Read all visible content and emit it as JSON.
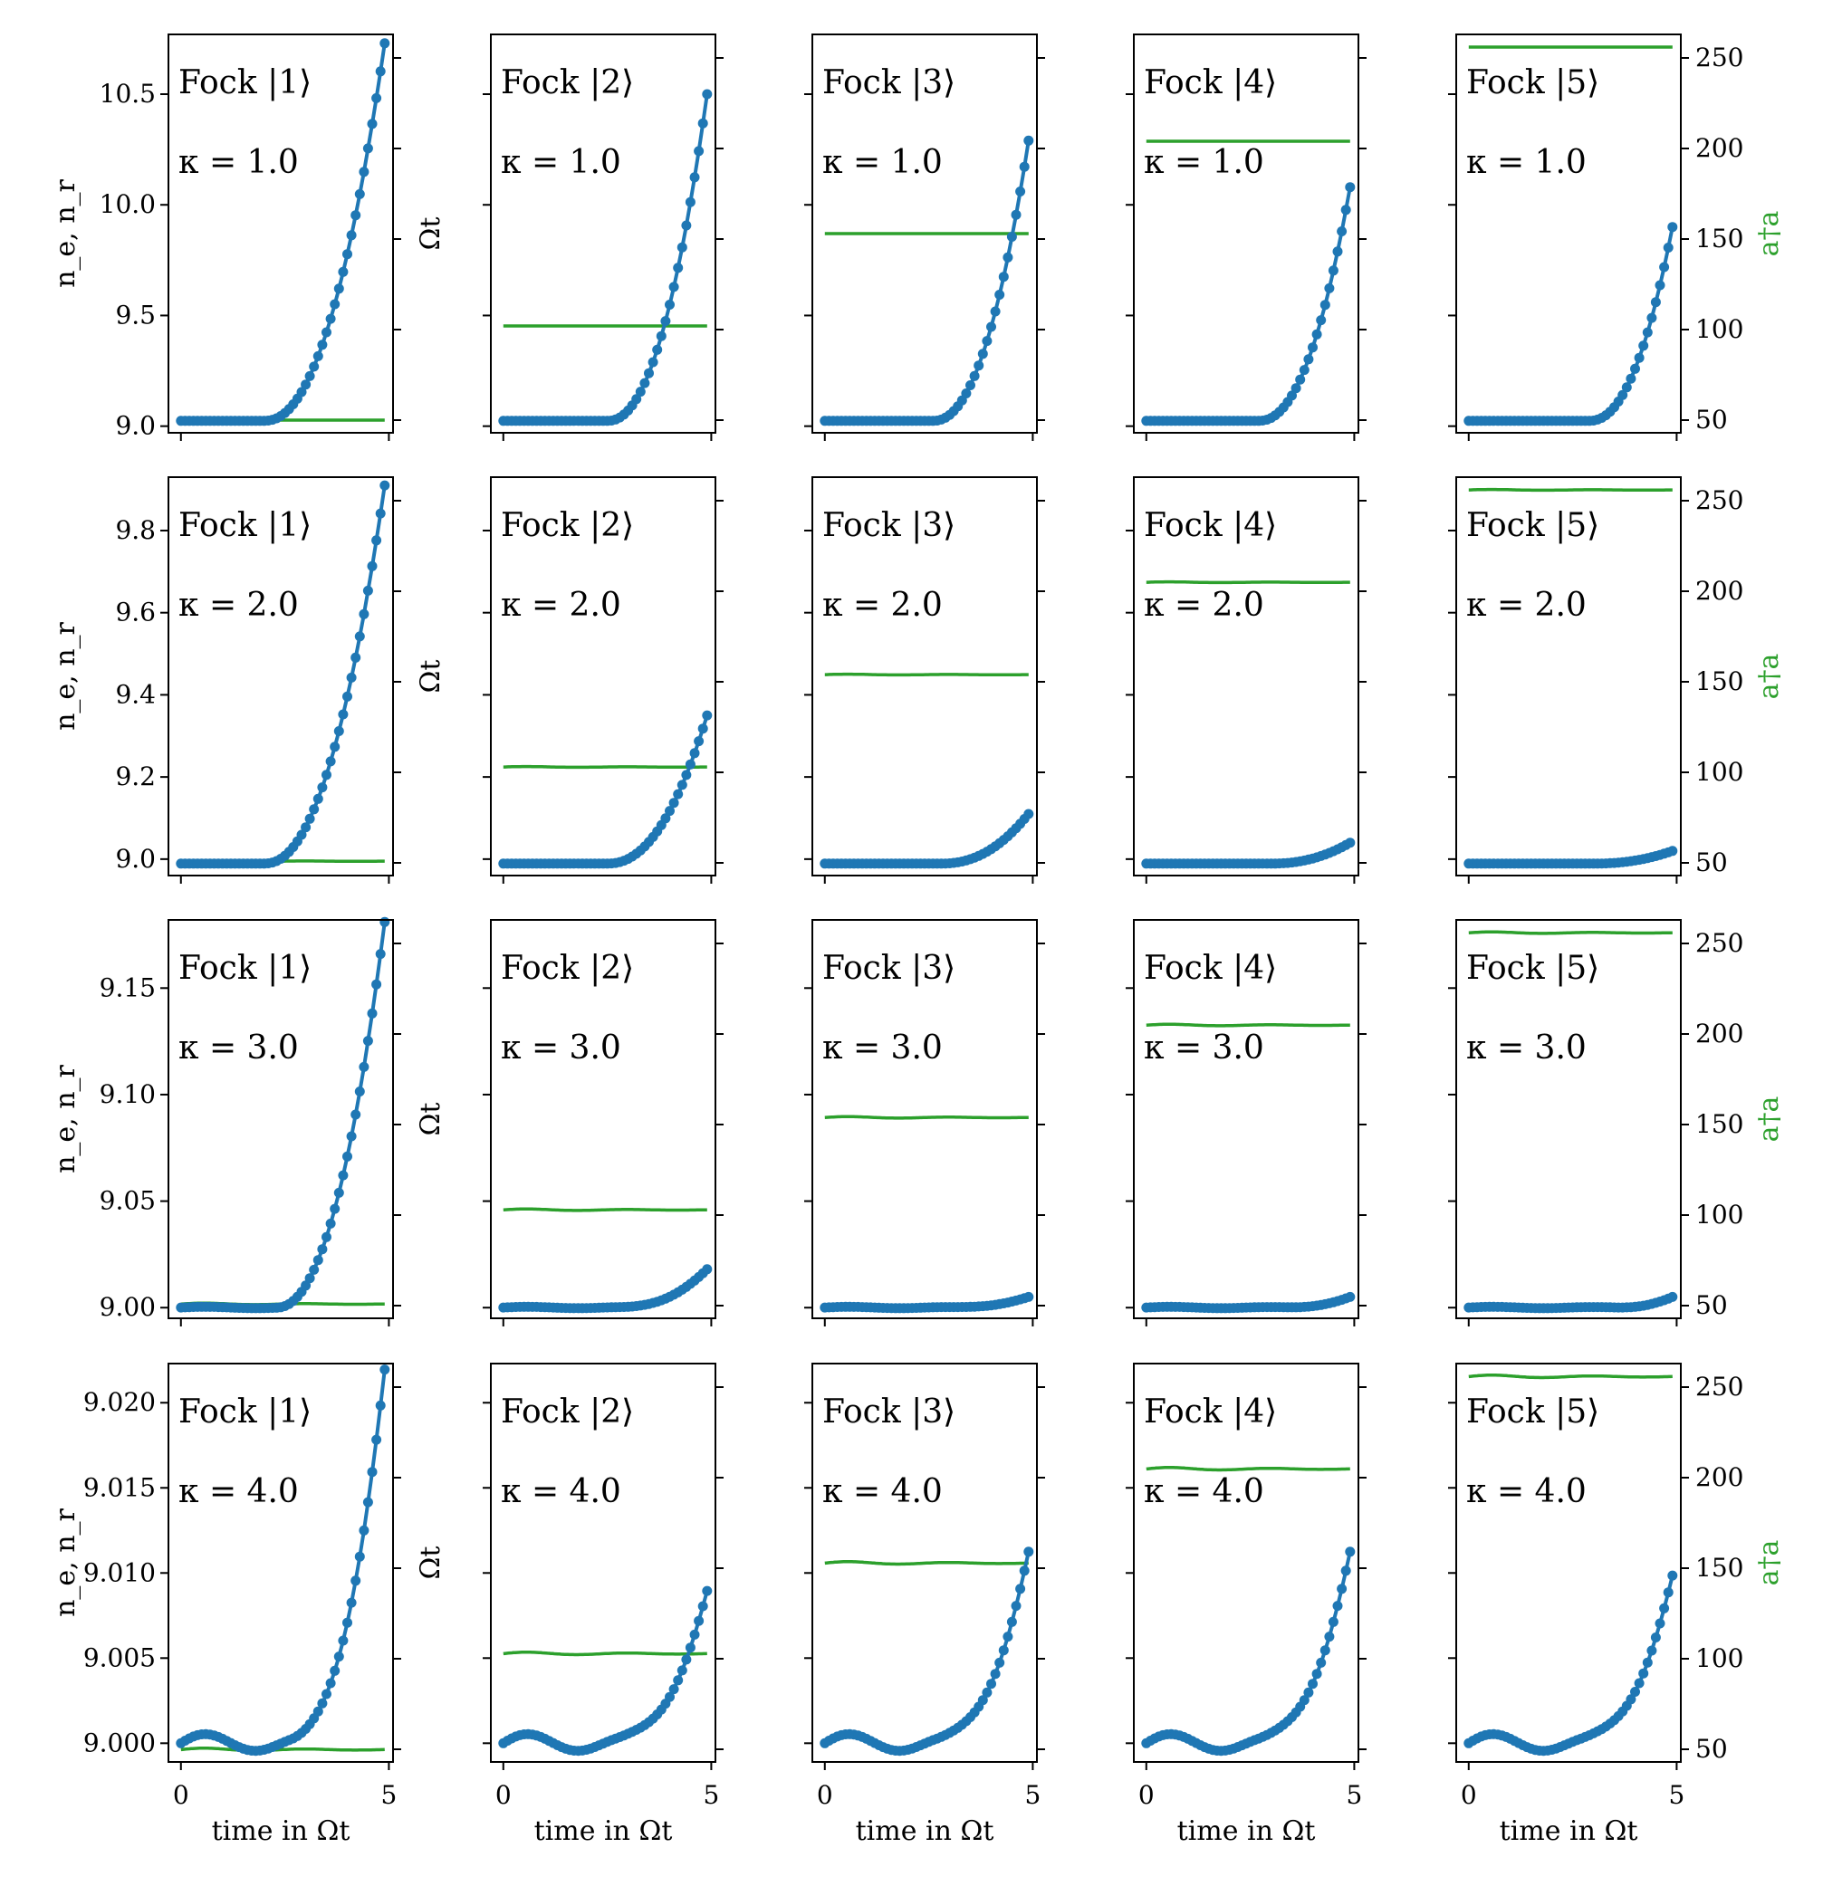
{
  "figure": {
    "xlabel": "time in Ωt",
    "left_ylabel": "n_e, n_r",
    "twin_ylabel_first_col": "Ωt",
    "right_ylabel": "a†a",
    "x_ticks": [
      "0",
      "5"
    ],
    "right_y_ticks": [
      "50",
      "100",
      "150",
      "200",
      "250"
    ],
    "row_left_y_ticks": [
      [
        "9.0",
        "9.5",
        "10.0",
        "10.5"
      ],
      [
        "9.0",
        "9.2",
        "9.4",
        "9.6",
        "9.8"
      ],
      [
        "9.00",
        "9.05",
        "9.10",
        "9.15"
      ],
      [
        "9.000",
        "9.005",
        "9.010",
        "9.015",
        "9.020"
      ]
    ],
    "fock_labels": [
      "Fock |1⟩",
      "Fock |2⟩",
      "Fock |3⟩",
      "Fock |4⟩",
      "Fock |5⟩"
    ],
    "kappa_labels": [
      "κ = 1.0",
      "κ = 2.0",
      "κ = 3.0",
      "κ = 4.0"
    ],
    "colors": {
      "blue": "#1f77b4",
      "green": "#2ca02c"
    }
  },
  "chart_data": {
    "type": "line",
    "layout": "grid 4 rows × 5 columns",
    "rows": [
      {
        "kappa": 1.0,
        "left_ylim": [
          8.97,
          10.77
        ],
        "right_ylim": [
          43,
          263
        ],
        "blue_end": [
          10.73,
          10.5,
          10.29,
          10.08,
          9.9
        ],
        "blue_onset": [
          2.0,
          2.5,
          2.6,
          2.7,
          2.9
        ],
        "green_level": [
          50,
          102,
          153,
          204,
          256
        ],
        "green_wiggle": 0
      },
      {
        "kappa": 2.0,
        "left_ylim": [
          8.96,
          9.93
        ],
        "right_ylim": [
          43,
          263
        ],
        "blue_end": [
          9.91,
          9.35,
          9.11,
          9.04,
          9.02
        ],
        "blue_onset": [
          2.0,
          2.5,
          2.8,
          3.0,
          3.0
        ],
        "green_level": [
          51,
          103,
          154,
          205,
          256
        ],
        "green_wiggle": 0.3
      },
      {
        "kappa": 3.0,
        "left_ylim": [
          8.995,
          9.182
        ],
        "right_ylim": [
          43,
          263
        ],
        "blue_end": [
          9.181,
          9.018,
          9.005,
          9.005,
          9.005
        ],
        "blue_onset": [
          2.3,
          2.8,
          3.0,
          3.3,
          3.5
        ],
        "green_level": [
          51,
          103,
          154,
          205,
          256
        ],
        "green_wiggle": 0.6
      },
      {
        "kappa": 4.0,
        "left_ylim": [
          8.9989,
          9.0223
        ],
        "right_ylim": [
          43,
          263
        ],
        "blue_end": [
          9.0219,
          9.0089,
          9.0112,
          9.0112,
          9.0098
        ],
        "blue_onset": [
          2.6,
          2.6,
          2.6,
          2.6,
          2.6
        ],
        "green_level": [
          50,
          103,
          153,
          205,
          256
        ],
        "green_wiggle": 1.0
      }
    ]
  }
}
